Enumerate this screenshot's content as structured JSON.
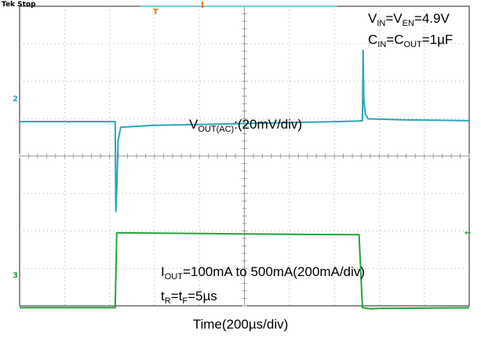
{
  "header": {
    "status_text": "Tek Stop"
  },
  "annotations": {
    "supply": {
      "a": "V",
      "a_sub": "IN",
      "b": "=V",
      "b_sub": "EN",
      "c": "=4.9V"
    },
    "caps": {
      "a": "C",
      "a_sub": "IN",
      "b": "=C",
      "b_sub": "OUT",
      "c": "=1µF"
    },
    "vout": {
      "a": "V",
      "a_sub": "OUT(AC)",
      "b": ":(20mV/div)"
    },
    "iout": {
      "a": "I",
      "a_sub": "OUT",
      "b": "=100mA to 500mA(200mA/div)"
    },
    "rise_fall": {
      "a": "t",
      "a_sub": "R",
      "b": "=t",
      "b_sub": "F",
      "c": "=5µs"
    }
  },
  "markers": {
    "ch2_ground": "2",
    "ch3_ground": "3",
    "trigger_position": "T",
    "trigger_level": "←"
  },
  "colors": {
    "grid_background": "#ffffff",
    "grid_lines": "#9a9a9a",
    "vout_trace": "#2aa7b5",
    "iout_trace": "#26a23c",
    "trigger_marker": "#e07b00"
  },
  "chart_data": {
    "type": "line",
    "xlabel": "Time(200µs/div)",
    "x_unit": "µs",
    "xlim": [
      0,
      2000
    ],
    "grid": {
      "divisions_x": 10,
      "divisions_y": 8,
      "minor_ticks": 5
    },
    "series": [
      {
        "name": "V_OUT(AC)",
        "unit": "mV",
        "scale_per_div": 20,
        "points": [
          [
            0,
            0
          ],
          [
            420,
            0
          ],
          [
            425,
            0
          ],
          [
            428,
            -48
          ],
          [
            432,
            -36
          ],
          [
            438,
            -10
          ],
          [
            450,
            -3
          ],
          [
            600,
            -2
          ],
          [
            800,
            -1.5
          ],
          [
            1000,
            -1
          ],
          [
            1200,
            -0.5
          ],
          [
            1400,
            0
          ],
          [
            1500,
            0.3
          ],
          [
            1525,
            0.5
          ],
          [
            1528,
            38
          ],
          [
            1531,
            12
          ],
          [
            1538,
            4
          ],
          [
            1550,
            1.5
          ],
          [
            1700,
            1
          ],
          [
            2000,
            0.5
          ]
        ]
      },
      {
        "name": "I_OUT",
        "unit": "mA",
        "scale_per_div": 200,
        "points": [
          [
            0,
            100
          ],
          [
            420,
            100
          ],
          [
            425,
            100
          ],
          [
            432,
            500
          ],
          [
            450,
            500
          ],
          [
            800,
            496
          ],
          [
            1200,
            492
          ],
          [
            1500,
            490
          ],
          [
            1510,
            490
          ],
          [
            1525,
            100
          ],
          [
            1560,
            94
          ],
          [
            1600,
            96
          ],
          [
            2000,
            100
          ]
        ]
      }
    ]
  }
}
